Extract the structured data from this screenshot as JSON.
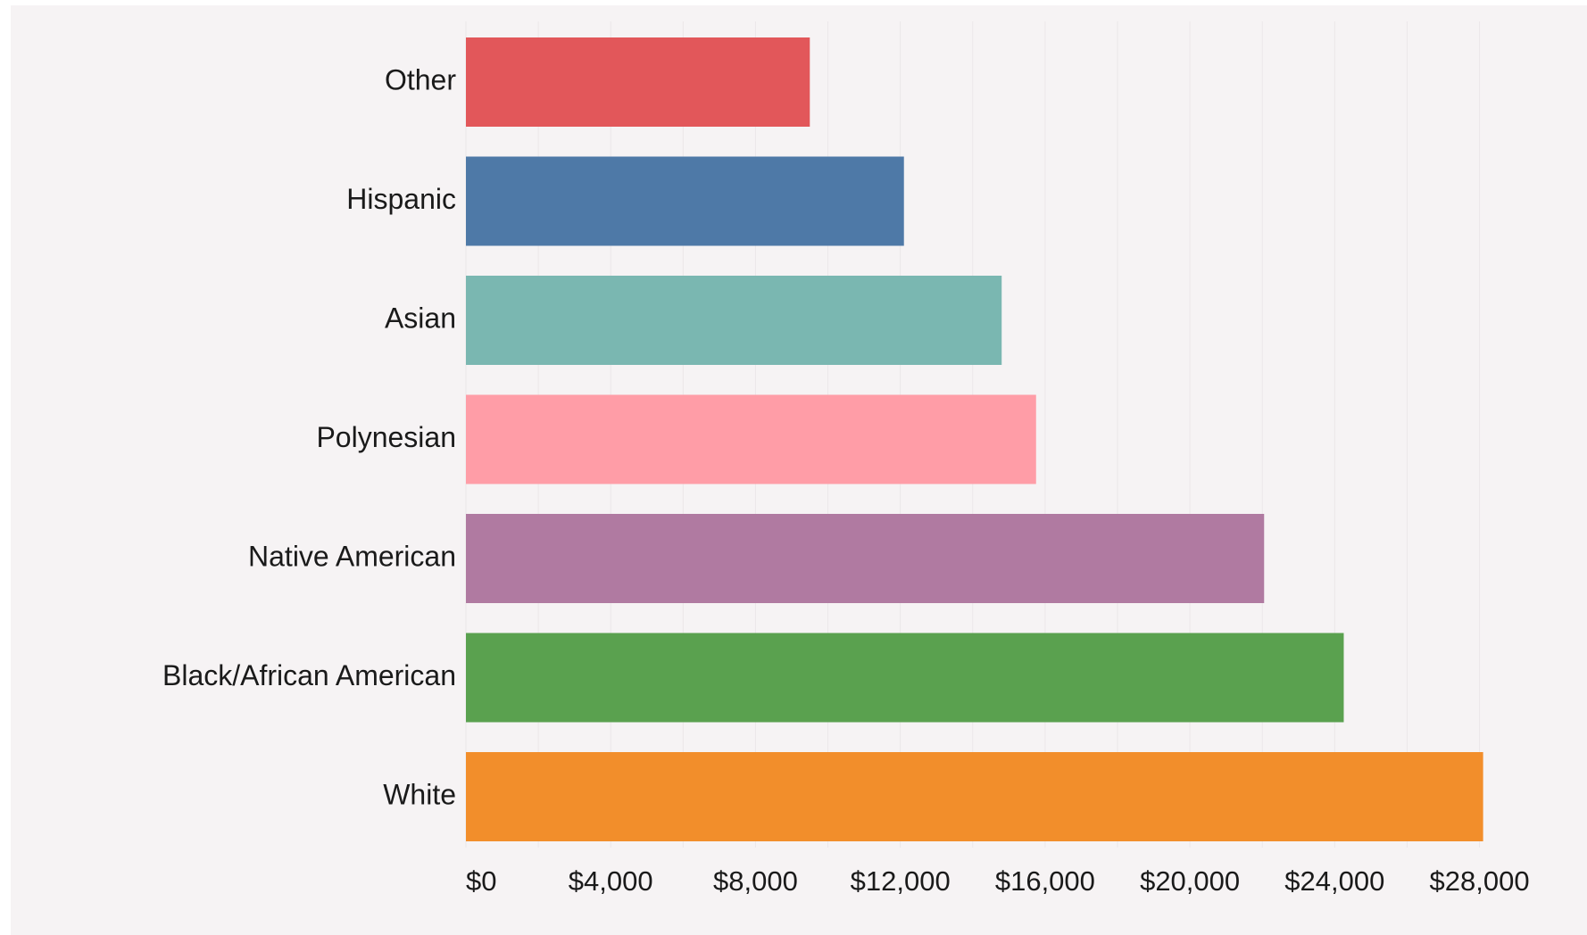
{
  "chart_data": {
    "type": "bar",
    "orientation": "horizontal",
    "title": "",
    "xlabel": "",
    "ylabel": "",
    "categories": [
      "Other",
      "Hispanic",
      "Asian",
      "Polynesian",
      "Native American",
      "Black/African American",
      "White"
    ],
    "values": [
      9500,
      12100,
      14800,
      15750,
      22050,
      24250,
      28100
    ],
    "colors": [
      "#e2575a",
      "#4e79a7",
      "#7ab7b1",
      "#ff9da7",
      "#b07aa1",
      "#5aa14f",
      "#f28e2b"
    ],
    "xlim": [
      0,
      28800
    ],
    "x_ticks": [
      0,
      4000,
      8000,
      12000,
      16000,
      20000,
      24000,
      28000
    ],
    "x_tick_labels": [
      "$0",
      "$4,000",
      "$8,000",
      "$12,000",
      "$16,000",
      "$20,000",
      "$24,000",
      "$28,000"
    ],
    "minor_grid_step": 2000,
    "grid": true,
    "legend": "none",
    "background": "#f6f3f4"
  }
}
